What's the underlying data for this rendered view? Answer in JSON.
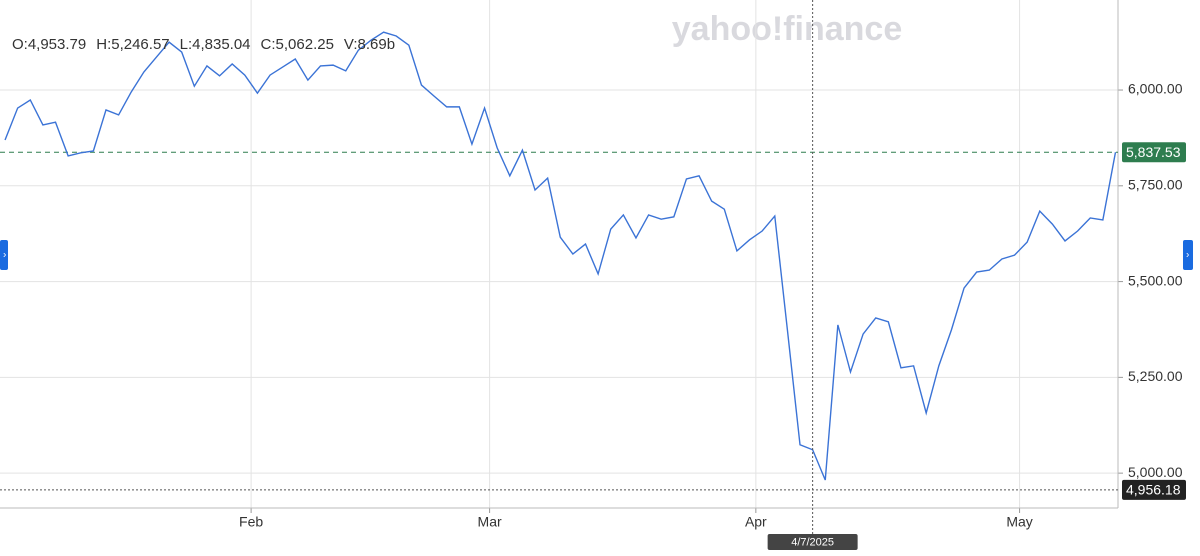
{
  "chart_data": {
    "type": "line",
    "watermark": "yahoo!finance",
    "ohlc": [
      "O:4,953.79",
      "H:5,246.57",
      "L:4,835.04",
      "C:5,062.25",
      "V:8.69b"
    ],
    "series": [
      {
        "color": "#3b73d6",
        "values": [
          5869.5,
          5953,
          5974,
          5909,
          5916,
          5828,
          5836,
          5841,
          5948,
          5935,
          5995,
          6047,
          6086,
          6125,
          6099,
          6010,
          6063,
          6037,
          6068,
          6039,
          5992,
          6039,
          6060,
          6081,
          6026,
          6063,
          6065,
          6050,
          6104,
          6130,
          6151,
          6141,
          6117,
          6013,
          5984,
          5956,
          5956,
          5859,
          5953,
          5849,
          5776,
          5843,
          5739,
          5770,
          5616,
          5572,
          5598,
          5520,
          5637,
          5674,
          5614,
          5674,
          5663,
          5669,
          5768,
          5776,
          5710,
          5689,
          5580,
          5609,
          5632,
          5671,
          5374,
          5074,
          5061,
          4982,
          5387,
          5264,
          5363,
          5405,
          5395,
          5275,
          5280,
          5157,
          5280,
          5374,
          5483,
          5525,
          5530,
          5559,
          5569,
          5603,
          5684,
          5650,
          5606,
          5632,
          5666,
          5661,
          5837.53
        ]
      }
    ],
    "xlim": [
      -0.4,
      88.2
    ],
    "xticks": [
      {
        "value": 19.5,
        "label": "Feb"
      },
      {
        "value": 38.4,
        "label": "Mar"
      },
      {
        "value": 59.5,
        "label": "Apr"
      },
      {
        "value": 80.4,
        "label": "May"
      }
    ],
    "ylim": [
      4909,
      6235
    ],
    "yticks": [
      {
        "value": 5000,
        "label": "5,000.00"
      },
      {
        "value": 5250,
        "label": "5,250.00"
      },
      {
        "value": 5500,
        "label": "5,500.00"
      },
      {
        "value": 5750,
        "label": "5,750.00"
      },
      {
        "value": 6000,
        "label": "6,000.00"
      }
    ],
    "grid": true,
    "last_price": {
      "value": 5837.53,
      "label": "5,837.53",
      "color": "#2e7d4f"
    },
    "crosshair": {
      "x": {
        "value": 64,
        "label": "4/7/2025"
      },
      "y": {
        "value": 4956.18,
        "label": "4,956.18"
      }
    }
  }
}
